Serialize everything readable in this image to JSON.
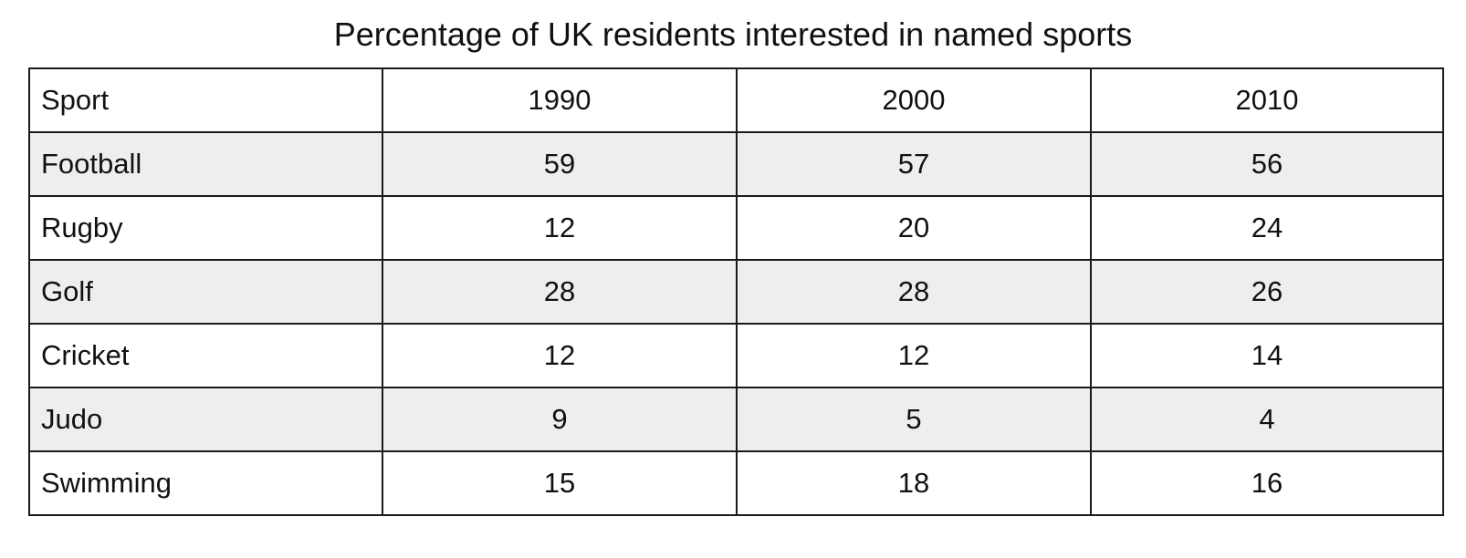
{
  "chart_data": {
    "type": "table",
    "title": "Percentage of UK residents interested in named sports",
    "columns": [
      "Sport",
      "1990",
      "2000",
      "2010"
    ],
    "rows": [
      {
        "label": "Football",
        "values": [
          "59",
          "57",
          "56"
        ]
      },
      {
        "label": "Rugby",
        "values": [
          "12",
          "20",
          "24"
        ]
      },
      {
        "label": "Golf",
        "values": [
          "28",
          "28",
          "26"
        ]
      },
      {
        "label": "Cricket",
        "values": [
          "12",
          "12",
          "14"
        ]
      },
      {
        "label": "Judo",
        "values": [
          "9",
          "5",
          "4"
        ]
      },
      {
        "label": "Swimming",
        "values": [
          "15",
          "18",
          "16"
        ]
      }
    ],
    "colors": {
      "border": "#1a1a1a",
      "stripe": "#eeeeee",
      "background": "#ffffff"
    }
  }
}
